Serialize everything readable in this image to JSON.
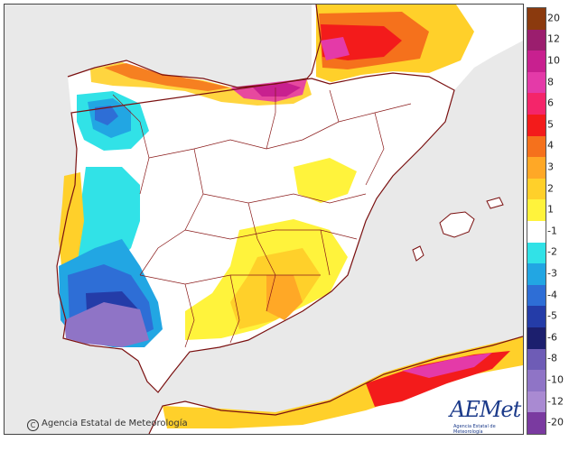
{
  "copyright": "Agencia Estatal de Meteorología",
  "logo": {
    "wordmark": "AEMet",
    "subtitle": "Agencia Estatal de Meteorología"
  },
  "legend": {
    "labels": [
      "20",
      "12",
      "10",
      "8",
      "6",
      "5",
      "4",
      "3",
      "2",
      "1",
      "-1",
      "-2",
      "-3",
      "-4",
      "-5",
      "-6",
      "-8",
      "-10",
      "-12",
      "-20"
    ],
    "colors": [
      "#8b3a0e",
      "#9b1e6e",
      "#c8208f",
      "#e43aa8",
      "#f4256a",
      "#f31b1b",
      "#f5711c",
      "#ffa826",
      "#ffd02a",
      "#fff33c",
      "#ffffff",
      "#31e2e7",
      "#22a6e3",
      "#2e6ed6",
      "#243ca8",
      "#1c1f6e",
      "#6e5cb6",
      "#8f74c6",
      "#a98ad2",
      "#7a3aa0"
    ]
  },
  "colors": {
    "sea": "#e9e9e9",
    "land": "#ffffff",
    "border": "#7a1010"
  }
}
